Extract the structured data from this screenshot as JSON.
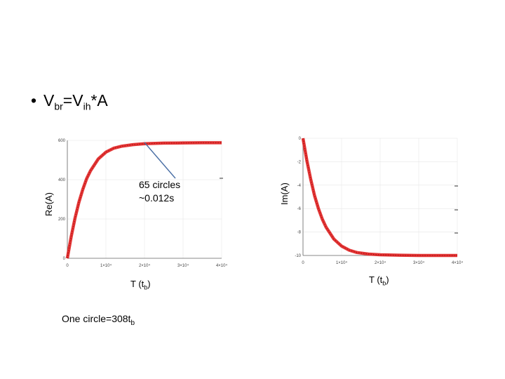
{
  "heading": {
    "bullet": "•",
    "v": "V",
    "sub_br": "br",
    "eq": "=V",
    "sub_ih": "ih",
    "tail": "*A"
  },
  "left_plot": {
    "ylabel": "Re(A)",
    "xlabel_main": "T (t",
    "xlabel_sub": "b",
    "xlabel_close": ")",
    "annotation_line1": "65 circles",
    "annotation_line2": "~0.012s"
  },
  "right_plot": {
    "ylabel": "Im(A)",
    "xlabel_main": "T (t",
    "xlabel_sub": "b",
    "xlabel_close": ")"
  },
  "note": {
    "main": "One circle=308t",
    "sub": "b"
  },
  "chart_data": [
    {
      "type": "line",
      "title": "",
      "xlabel": "T (tb)",
      "ylabel": "Re(A)",
      "xlim": [
        0,
        40000
      ],
      "ylim": [
        0,
        600
      ],
      "x_ticks": [
        0,
        10000,
        20000,
        30000,
        40000
      ],
      "x_tick_labels": [
        "0",
        "1×10⁴",
        "2×10⁴",
        "3×10⁴",
        "4×10⁴"
      ],
      "y_ticks": [
        0,
        200,
        400,
        600
      ],
      "y_tick_labels": [
        "0",
        "200",
        "400",
        "600"
      ],
      "grid": true,
      "series": [
        {
          "color": "#e02020",
          "x": [
            0,
            1000,
            2000,
            3000,
            4000,
            5000,
            6000,
            8000,
            10000,
            12000,
            14000,
            17000,
            20000,
            25000,
            30000,
            35000,
            40000
          ],
          "y": [
            0,
            110,
            205,
            285,
            350,
            405,
            445,
            505,
            540,
            560,
            570,
            578,
            583,
            586,
            587,
            588,
            588
          ]
        }
      ]
    },
    {
      "type": "line",
      "title": "",
      "xlabel": "T (tb)",
      "ylabel": "Im(A)",
      "xlim": [
        0,
        40000
      ],
      "ylim": [
        -10,
        0
      ],
      "x_ticks": [
        0,
        10000,
        20000,
        30000,
        40000
      ],
      "x_tick_labels": [
        "0",
        "1×10⁴",
        "2×10⁴",
        "3×10⁴",
        "4×10⁴"
      ],
      "y_ticks": [
        0,
        -2,
        -4,
        -6,
        -8,
        -10
      ],
      "y_tick_labels": [
        "0",
        "-2",
        "-4",
        "-6",
        "-8",
        "-10"
      ],
      "grid": true,
      "series": [
        {
          "color": "#e02020",
          "x": [
            0,
            1000,
            2000,
            3000,
            4000,
            5000,
            6000,
            8000,
            10000,
            12000,
            14000,
            17000,
            20000,
            25000,
            30000,
            35000,
            40000
          ],
          "y": [
            0,
            -1.9,
            -3.5,
            -4.9,
            -6.0,
            -6.9,
            -7.6,
            -8.6,
            -9.2,
            -9.55,
            -9.75,
            -9.88,
            -9.94,
            -9.98,
            -10,
            -10,
            -10
          ]
        }
      ]
    }
  ]
}
